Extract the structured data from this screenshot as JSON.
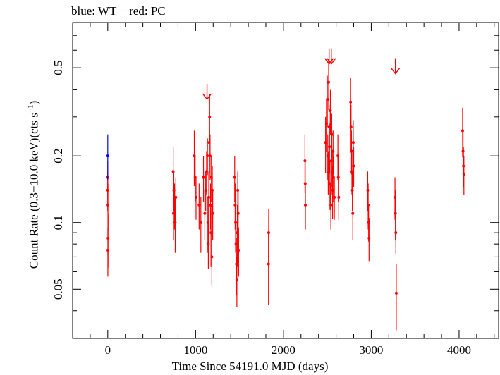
{
  "chart_data": {
    "type": "scatter",
    "title": "blue: WT − red: PC",
    "xlabel": "Time Since 54191.0 MJD (days)",
    "ylabel_main": "Count Rate (0.3−10.0 keV)(cts s",
    "ylabel_sup": "−1",
    "ylabel_end": ")",
    "x_range": [
      -400,
      4450
    ],
    "y_range": [
      0.03,
      0.8
    ],
    "y_scale": "log",
    "x_ticks": [
      0,
      1000,
      2000,
      3000,
      4000
    ],
    "x_tick_labels": [
      "0",
      "1000",
      "2000",
      "3000",
      "4000"
    ],
    "y_ticks": [
      0.05,
      0.1,
      0.2,
      0.5
    ],
    "y_tick_labels": [
      "0.05",
      "0.1",
      "0.2",
      "0.5"
    ],
    "series": [
      {
        "name": "WT",
        "color": "#0000ff",
        "points": [
          [
            0,
            0.2,
            0.25
          ]
        ]
      },
      {
        "name": "PC",
        "color": "#ff0000",
        "points": [
          [
            0,
            0.16,
            0.19
          ],
          [
            2,
            0.12,
            0.15
          ],
          [
            3,
            0.085,
            0.11
          ],
          [
            1,
            0.075,
            0.095
          ],
          [
            -1,
            0.14,
            0.17
          ],
          [
            745,
            0.17,
            0.22
          ],
          [
            752,
            0.14,
            0.17
          ],
          [
            760,
            0.12,
            0.15
          ],
          [
            768,
            0.1,
            0.13
          ],
          [
            775,
            0.13,
            0.16
          ],
          [
            748,
            0.11,
            0.14
          ],
          [
            985,
            0.2,
            0.26
          ],
          [
            995,
            0.16,
            0.2
          ],
          [
            1005,
            0.13,
            0.16
          ],
          [
            1040,
            0.12,
            0.15
          ],
          [
            1060,
            0.1,
            0.13
          ],
          [
            1090,
            0.16,
            0.2
          ],
          [
            1105,
            0.11,
            0.14
          ],
          [
            1115,
            0.14,
            0.17
          ],
          [
            1125,
            0.17,
            0.21
          ],
          [
            1135,
            0.2,
            0.24
          ],
          [
            1140,
            0.1,
            0.13
          ],
          [
            1145,
            0.08,
            0.1
          ],
          [
            1150,
            0.13,
            0.17
          ],
          [
            1155,
            0.23,
            0.3
          ],
          [
            1160,
            0.3,
            0.38
          ],
          [
            1165,
            0.2,
            0.25
          ],
          [
            1170,
            0.12,
            0.15
          ],
          [
            1175,
            0.09,
            0.12
          ],
          [
            1180,
            0.16,
            0.2
          ],
          [
            1185,
            0.07,
            0.09
          ],
          [
            1190,
            0.14,
            0.18
          ],
          [
            1195,
            0.11,
            0.14
          ],
          [
            1445,
            0.16,
            0.2
          ],
          [
            1450,
            0.12,
            0.15
          ],
          [
            1455,
            0.1,
            0.13
          ],
          [
            1460,
            0.08,
            0.1
          ],
          [
            1465,
            0.065,
            0.085
          ],
          [
            1470,
            0.055,
            0.07
          ],
          [
            1475,
            0.09,
            0.12
          ],
          [
            1480,
            0.14,
            0.17
          ],
          [
            1485,
            0.11,
            0.14
          ],
          [
            1490,
            0.075,
            0.095
          ],
          [
            1830,
            0.065,
            0.09
          ],
          [
            1832,
            0.09,
            0.115
          ],
          [
            2245,
            0.19,
            0.25
          ],
          [
            2248,
            0.15,
            0.19
          ],
          [
            2250,
            0.12,
            0.15
          ],
          [
            2480,
            0.23,
            0.3
          ],
          [
            2490,
            0.28,
            0.36
          ],
          [
            2500,
            0.36,
            0.46
          ],
          [
            2505,
            0.2,
            0.25
          ],
          [
            2510,
            0.17,
            0.21
          ],
          [
            2515,
            0.43,
            0.55
          ],
          [
            2520,
            0.27,
            0.34
          ],
          [
            2525,
            0.22,
            0.28
          ],
          [
            2530,
            0.15,
            0.19
          ],
          [
            2535,
            0.32,
            0.4
          ],
          [
            2540,
            0.12,
            0.15
          ],
          [
            2545,
            0.19,
            0.24
          ],
          [
            2550,
            0.25,
            0.31
          ],
          [
            2555,
            0.17,
            0.21
          ],
          [
            2560,
            0.14,
            0.18
          ],
          [
            2565,
            0.21,
            0.26
          ],
          [
            2570,
            0.16,
            0.2
          ],
          [
            2580,
            0.13,
            0.16
          ],
          [
            2620,
            0.2,
            0.25
          ],
          [
            2625,
            0.16,
            0.2
          ],
          [
            2630,
            0.13,
            0.16
          ],
          [
            2765,
            0.35,
            0.45
          ],
          [
            2770,
            0.27,
            0.34
          ],
          [
            2775,
            0.21,
            0.26
          ],
          [
            2780,
            0.17,
            0.21
          ],
          [
            2785,
            0.14,
            0.17
          ],
          [
            2790,
            0.11,
            0.14
          ],
          [
            2795,
            0.23,
            0.29
          ],
          [
            2800,
            0.18,
            0.22
          ],
          [
            2960,
            0.14,
            0.17
          ],
          [
            2965,
            0.12,
            0.15
          ],
          [
            2970,
            0.1,
            0.12
          ],
          [
            2975,
            0.085,
            0.105
          ],
          [
            3270,
            0.13,
            0.16
          ],
          [
            3275,
            0.11,
            0.14
          ],
          [
            3280,
            0.09,
            0.11
          ],
          [
            3285,
            0.048,
            0.065
          ],
          [
            4040,
            0.26,
            0.33
          ],
          [
            4045,
            0.21,
            0.26
          ],
          [
            4050,
            0.18,
            0.22
          ],
          [
            4055,
            0.165,
            0.2
          ]
        ],
        "upper_limits": [
          [
            1130,
            0.36
          ],
          [
            2520,
            0.52
          ],
          [
            2545,
            0.52
          ],
          [
            3275,
            0.47
          ]
        ]
      }
    ]
  }
}
